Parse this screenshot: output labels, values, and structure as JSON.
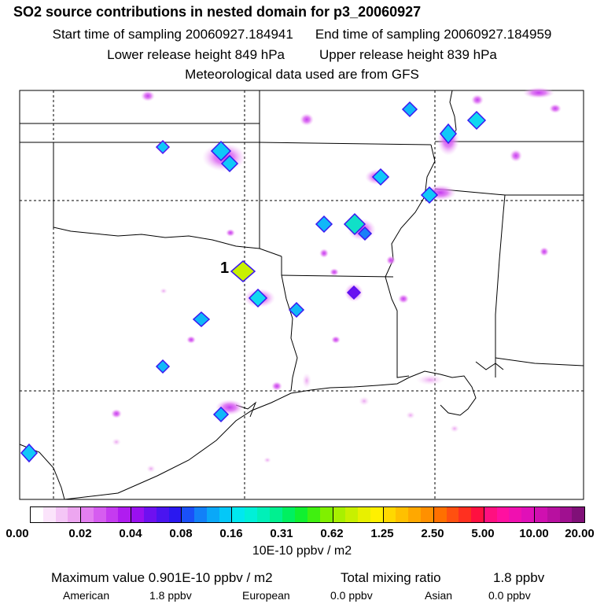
{
  "header": {
    "title": "SO2 source contributions in nested domain for p3_20060927",
    "start_label": "Start time of sampling 20060927.184941",
    "end_label": "End time of sampling 20060927.184959",
    "lower_label": "Lower release height  849 hPa",
    "upper_label": "Upper release height  839 hPa",
    "met_label": "Meteorological data used are from GFS"
  },
  "map": {
    "source_marker_label": "1"
  },
  "legend": {
    "tick_labels": [
      "0.00",
      "0.02",
      "0.04",
      "0.08",
      "0.16",
      "0.31",
      "0.62",
      "1.25",
      "2.50",
      "5.00",
      "10.00",
      "20.00"
    ],
    "units": "10E-10 ppbv / m2",
    "segment_colors": [
      [
        "#ffffff",
        "#fbe4fb",
        "#f4c6f6",
        "#eda6f0"
      ],
      [
        "#e37ff0",
        "#d65df0",
        "#c53bf0",
        "#b01cf0"
      ],
      [
        "#9a10f0",
        "#6e10f0",
        "#4a14f0",
        "#2a18f0"
      ],
      [
        "#1a50f8",
        "#1280f8",
        "#0aa8f8",
        "#04c8f8"
      ],
      [
        "#00e8f0",
        "#00f0d8",
        "#00f0b8",
        "#00f090"
      ],
      [
        "#00f060",
        "#10f030",
        "#40f010",
        "#80f000"
      ],
      [
        "#a8f000",
        "#c8f000",
        "#e8f000",
        "#fff000"
      ],
      [
        "#ffd800",
        "#ffc000",
        "#ffa800",
        "#ff9000"
      ],
      [
        "#ff7000",
        "#ff5010",
        "#ff3020",
        "#ff1040"
      ],
      [
        "#ff1080",
        "#ff10a0",
        "#f010b0",
        "#e010b8"
      ],
      [
        "#d010b0",
        "#b810a0",
        "#a01090",
        "#801078"
      ]
    ]
  },
  "summary": {
    "max_label": "Maximum value  0.901E-10 ppbv / m2",
    "total_label": "Total mixing ratio",
    "total_value": "1.8 ppbv",
    "american_label": "American",
    "american_value": "1.8 ppbv",
    "european_label": "European",
    "european_value": "0.0 ppbv",
    "asian_label": "Asian",
    "asian_value": "0.0 ppbv"
  }
}
